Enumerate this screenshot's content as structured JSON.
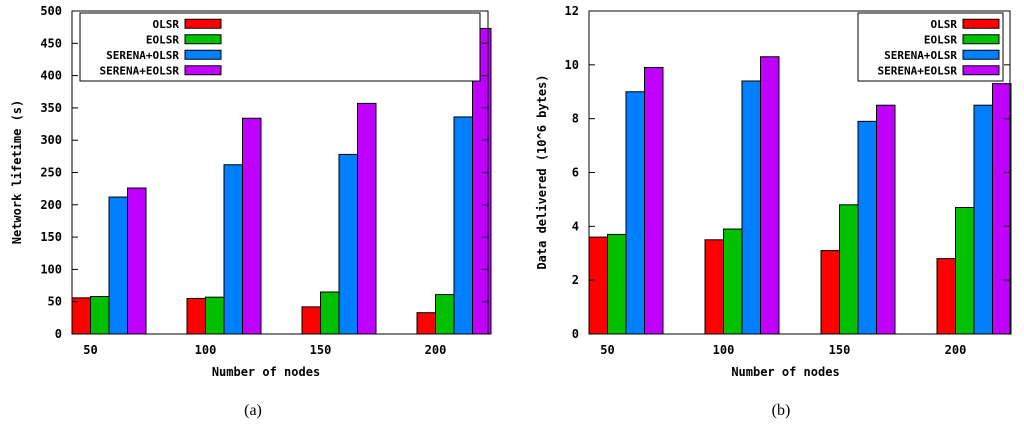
{
  "chart_data": [
    {
      "type": "bar",
      "caption": "(a)",
      "title": "",
      "xlabel": "Number of nodes",
      "ylabel": "Network lifetime (s)",
      "categories": [
        "50",
        "100",
        "150",
        "200"
      ],
      "ylim": [
        0,
        500
      ],
      "yticks": [
        0,
        50,
        100,
        150,
        200,
        250,
        300,
        350,
        400,
        450,
        500
      ],
      "legend_position": "top-right",
      "series": [
        {
          "name": "OLSR",
          "color": "#ff0000",
          "values": [
            56,
            55,
            42,
            33
          ]
        },
        {
          "name": "EOLSR",
          "color": "#00c000",
          "values": [
            58,
            57,
            65,
            61
          ]
        },
        {
          "name": "SERENA+OLSR",
          "color": "#0080ff",
          "values": [
            212,
            262,
            278,
            336
          ]
        },
        {
          "name": "SERENA+EOLSR",
          "color": "#c000ff",
          "values": [
            226,
            334,
            357,
            473
          ]
        }
      ]
    },
    {
      "type": "bar",
      "caption": "(b)",
      "title": "",
      "xlabel": "Number of nodes",
      "ylabel": "Data delivered (10^6 bytes)",
      "categories": [
        "50",
        "100",
        "150",
        "200"
      ],
      "ylim": [
        0,
        12
      ],
      "yticks": [
        0,
        2,
        4,
        6,
        8,
        10,
        12
      ],
      "legend_position": "top-right",
      "series": [
        {
          "name": "OLSR",
          "color": "#ff0000",
          "values": [
            3.6,
            3.5,
            3.1,
            2.8
          ]
        },
        {
          "name": "EOLSR",
          "color": "#00c000",
          "values": [
            3.7,
            3.9,
            4.8,
            4.7
          ]
        },
        {
          "name": "SERENA+OLSR",
          "color": "#0080ff",
          "values": [
            9.0,
            9.4,
            7.9,
            8.5
          ]
        },
        {
          "name": "SERENA+EOLSR",
          "color": "#c000ff",
          "values": [
            9.9,
            10.3,
            8.5,
            9.3
          ]
        }
      ]
    }
  ]
}
